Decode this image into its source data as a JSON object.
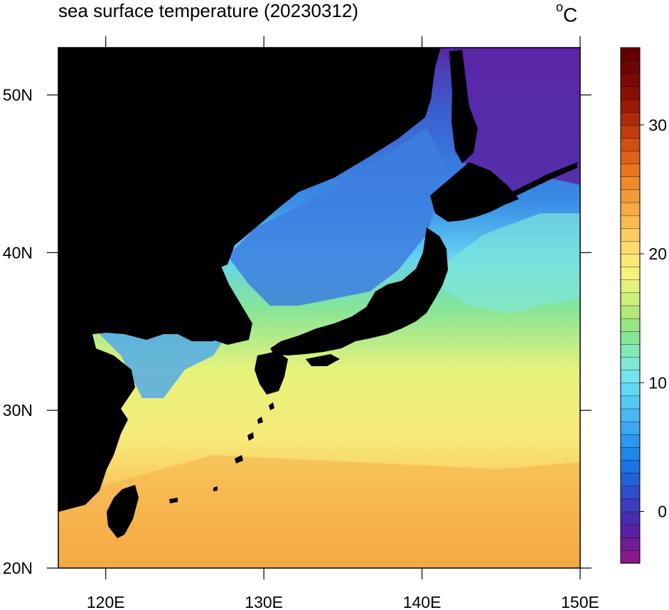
{
  "title": "sea surface temperature (20230312)",
  "units": {
    "degree_symbol": "o",
    "letter": "C"
  },
  "map": {
    "lon_range": [
      117,
      150
    ],
    "lat_range": [
      20,
      53
    ],
    "lon_ticks": [
      {
        "value": 120,
        "label": "120E"
      },
      {
        "value": 130,
        "label": "130E"
      },
      {
        "value": 140,
        "label": "140E"
      },
      {
        "value": 150,
        "label": "150E"
      }
    ],
    "lat_ticks": [
      {
        "value": 20,
        "label": "20N"
      },
      {
        "value": 30,
        "label": "30N"
      },
      {
        "value": 40,
        "label": "40N"
      },
      {
        "value": 50,
        "label": "50N"
      }
    ],
    "land_color": "#000000"
  },
  "colorbar": {
    "min": -4,
    "max": 36,
    "step": 1,
    "ticks": [
      {
        "value": 0,
        "label": "0"
      },
      {
        "value": 10,
        "label": "10"
      },
      {
        "value": 20,
        "label": "20"
      },
      {
        "value": 30,
        "label": "30"
      }
    ],
    "colors": [
      "#8a1a8c",
      "#6f1d94",
      "#5a21a2",
      "#4a2bb0",
      "#3c3dbd",
      "#2f4fca",
      "#2262d8",
      "#1a74e3",
      "#1f86ea",
      "#2d96ee",
      "#3ca8f0",
      "#4ab8f2",
      "#56c8f4",
      "#63d8f5",
      "#73e4f0",
      "#7fe8d6",
      "#84e7b6",
      "#87e596",
      "#98e585",
      "#b2e97b",
      "#cdef7c",
      "#e3f27d",
      "#f3f27c",
      "#fbe877",
      "#fddb6f",
      "#fccc62",
      "#f9bc53",
      "#f6ab45",
      "#f39a38",
      "#f08a2c",
      "#ea7521",
      "#df6118",
      "#d04f12",
      "#c03c0e",
      "#ae2a0a",
      "#991a06",
      "#871006",
      "#7a0a05",
      "#6e0504",
      "#640000"
    ]
  }
}
